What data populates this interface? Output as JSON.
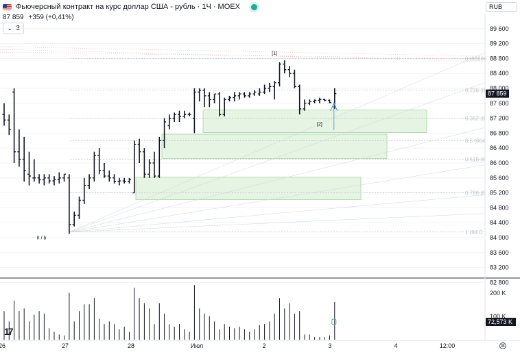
{
  "header": {
    "title": "Фьючерсный контракт на курс доллар США - рубль · 1Ч · MOEX",
    "price": "87 859",
    "change": "+359 (+0,41%)",
    "collapse_count": "3",
    "currency": "RUB"
  },
  "colors": {
    "bar": "#131722",
    "zone_fill": "#e6f4e4",
    "zone_stroke": "#a8d5a0",
    "arrow": "#5b9bd5",
    "fib": "#b2b5be",
    "resistance": "#e8a0a8"
  },
  "chart_data": {
    "type": "ohlc",
    "price_axis": {
      "ticks": [
        89600,
        89200,
        88800,
        88400,
        88000,
        87600,
        87200,
        86800,
        86400,
        86000,
        85600,
        85200,
        84800,
        84400,
        84000,
        83600,
        83200,
        82800
      ],
      "labels": [
        "89 600",
        "89 200",
        "88 800",
        "88 400",
        "88 000",
        "87 600",
        "87 200",
        "86 800",
        "86 400",
        "86 000",
        "85 600",
        "85 200",
        "84 800",
        "84 400",
        "84 000",
        "83 600",
        "83 200",
        "82 800"
      ],
      "last_price": 87859,
      "last_label": "87 859"
    },
    "time_axis": {
      "labels": [
        "26",
        "27",
        "28",
        "Июл",
        "2",
        "3",
        "4",
        "12:00"
      ]
    },
    "volume_axis": {
      "labels": [
        "200 K",
        "100 K"
      ],
      "last_label": "72,573 K"
    },
    "ohlc": [
      [
        87300,
        87600,
        87000,
        87150
      ],
      [
        87150,
        87300,
        86750,
        86900
      ],
      [
        87900,
        88000,
        86000,
        86300
      ],
      [
        86300,
        86900,
        85900,
        86100
      ],
      [
        86100,
        86700,
        85500,
        85800
      ],
      [
        85700,
        86300,
        85400,
        85650
      ],
      [
        85600,
        86100,
        85500,
        85600
      ],
      [
        85600,
        85700,
        85450,
        85550
      ],
      [
        85550,
        85700,
        85400,
        85600
      ],
      [
        85600,
        85700,
        85450,
        85520
      ],
      [
        85520,
        85650,
        85400,
        85560
      ],
      [
        85560,
        85750,
        85450,
        85600
      ],
      [
        85600,
        85700,
        85500,
        85700
      ],
      [
        85600,
        85700,
        84100,
        84350
      ],
      [
        84350,
        84700,
        84300,
        84600
      ],
      [
        84600,
        85100,
        84500,
        85000
      ],
      [
        85000,
        85600,
        84900,
        85400
      ],
      [
        85400,
        85700,
        85300,
        85600
      ],
      [
        85600,
        86300,
        85500,
        86200
      ],
      [
        86200,
        86400,
        85700,
        85800
      ],
      [
        85800,
        86000,
        85600,
        85650
      ],
      [
        85650,
        85800,
        85500,
        85600
      ],
      [
        85600,
        85700,
        85450,
        85500
      ],
      [
        85500,
        85600,
        85400,
        85520
      ],
      [
        85520,
        85600,
        85450,
        85500
      ],
      [
        85500,
        85600,
        85450,
        85560
      ],
      [
        85200,
        86600,
        85200,
        86500
      ],
      [
        86500,
        86650,
        86000,
        86300
      ],
      [
        86300,
        86400,
        85600,
        85700
      ],
      [
        85700,
        86100,
        85600,
        86000
      ],
      [
        86000,
        86300,
        85600,
        85650
      ],
      [
        85650,
        86700,
        85600,
        86600
      ],
      [
        86600,
        87200,
        86400,
        87100
      ],
      [
        87000,
        87300,
        86900,
        87200
      ],
      [
        87200,
        87350,
        87100,
        87300
      ],
      [
        87300,
        87400,
        87100,
        87250
      ],
      [
        87250,
        87400,
        87200,
        87300
      ],
      [
        87300,
        87350,
        87250,
        87300
      ],
      [
        87200,
        88000,
        86800,
        87900
      ],
      [
        87900,
        88000,
        87650,
        87950
      ],
      [
        87950,
        88000,
        87500,
        87800
      ],
      [
        87800,
        87900,
        87500,
        87700
      ],
      [
        87700,
        87850,
        87600,
        87850
      ],
      [
        87850,
        87900,
        87250,
        87300
      ],
      [
        87300,
        87750,
        87250,
        87700
      ],
      [
        87700,
        87800,
        87650,
        87750
      ],
      [
        87750,
        87900,
        87650,
        87800
      ],
      [
        87800,
        87900,
        87700,
        87850
      ],
      [
        87850,
        87900,
        87750,
        87800
      ],
      [
        87800,
        87900,
        87750,
        87850
      ],
      [
        87850,
        87950,
        87800,
        87900
      ],
      [
        87850,
        88000,
        87800,
        87900
      ],
      [
        87900,
        88100,
        87850,
        88000
      ],
      [
        88000,
        88150,
        87900,
        88050
      ],
      [
        88050,
        88200,
        87700,
        88150
      ],
      [
        88150,
        88700,
        88050,
        88650
      ],
      [
        88650,
        88750,
        88400,
        88500
      ],
      [
        88500,
        88600,
        88300,
        88400
      ],
      [
        88400,
        88500,
        88000,
        88050
      ],
      [
        88050,
        88100,
        87300,
        87450
      ],
      [
        87450,
        87700,
        87400,
        87600
      ],
      [
        87600,
        87700,
        87550,
        87650
      ],
      [
        87650,
        87700,
        87600,
        87680
      ],
      [
        87680,
        87750,
        87600,
        87700
      ],
      [
        87700,
        87720,
        87650,
        87680
      ],
      [
        87680,
        87700,
        87600,
        87620
      ],
      [
        87500,
        88000,
        87450,
        87859
      ]
    ],
    "volume": [
      55,
      35,
      75,
      55,
      60,
      35,
      48,
      55,
      50,
      22,
      15,
      10,
      8,
      90,
      35,
      55,
      68,
      68,
      80,
      40,
      30,
      35,
      30,
      20,
      25,
      15,
      100,
      80,
      70,
      60,
      30,
      70,
      50,
      30,
      25,
      30,
      20,
      15,
      105,
      60,
      50,
      45,
      35,
      20,
      30,
      25,
      22,
      25,
      20,
      15,
      20,
      28,
      30,
      35,
      50,
      80,
      60,
      70,
      50,
      55,
      10,
      10,
      5,
      5,
      5,
      8,
      72.573
    ],
    "zones": [
      {
        "from": 87000,
        "to": 87200
      },
      {
        "from": 86300,
        "to": 86550
      },
      {
        "from": 85200,
        "to": 85400
      }
    ],
    "fib_levels": [
      {
        "price": 88800,
        "label": "0 (88806"
      },
      {
        "price": 87950,
        "label": "0.236 (8"
      },
      {
        "price": 87200,
        "label": "0.382 (8"
      },
      {
        "price": 86600,
        "label": "0.5 (864"
      },
      {
        "price": 86100,
        "label": "0.618 (8"
      },
      {
        "price": 85200,
        "label": "0.786 (8"
      },
      {
        "price": 84150,
        "label": "1 (84 0"
      }
    ],
    "annotations": [
      {
        "text": "[1]",
        "index": 54,
        "price": 88900
      },
      {
        "text": "[2]",
        "index": 63,
        "price": 87000
      },
      {
        "text": "II / b",
        "index": 2,
        "price": 83950
      }
    ]
  }
}
